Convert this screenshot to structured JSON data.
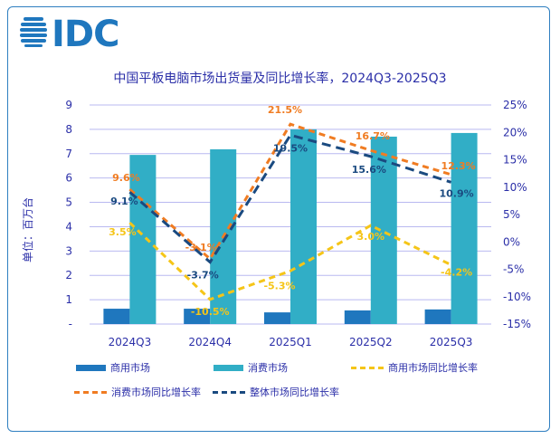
{
  "logo_text": "IDC",
  "title": "中国平板电脑市场出货量及同比增长率，2024Q3-2025Q3",
  "chart_data": {
    "type": "bar+line",
    "title": "中国平板电脑市场出货量及同比增长率，2024Q3-2025Q3",
    "ylabel": "单位：百万台",
    "categories": [
      "2024Q3",
      "2024Q4",
      "2025Q1",
      "2025Q2",
      "2025Q3"
    ],
    "ylim": [
      0,
      9
    ],
    "y_ticks": [
      "-",
      "1",
      "2",
      "3",
      "4",
      "5",
      "6",
      "7",
      "8",
      "9"
    ],
    "y2lim": [
      -15,
      25
    ],
    "y2_ticks": [
      "-15%",
      "-10%",
      "-5%",
      "0%",
      "5%",
      "10%",
      "15%",
      "20%",
      "25%"
    ],
    "grid": true,
    "legend_position": "bottom",
    "bar_series": [
      {
        "name": "商用市场",
        "color": "#1f77be",
        "values": [
          0.63,
          0.63,
          0.48,
          0.56,
          0.6
        ]
      },
      {
        "name": "消费市场",
        "color": "#31aec6",
        "values": [
          6.95,
          7.18,
          8.0,
          7.7,
          7.85
        ]
      }
    ],
    "line_series": [
      {
        "name": "商用市场同比增长率",
        "color": "#f5c518",
        "values": [
          3.5,
          -10.5,
          -5.3,
          3.0,
          -4.2
        ],
        "labels": [
          "3.5%",
          "-10.5%",
          "-5.3%",
          "3.0%",
          "-4.2%"
        ]
      },
      {
        "name": "消费市场同比增长率",
        "color": "#f07c22",
        "values": [
          9.6,
          -3.1,
          21.5,
          16.7,
          12.3
        ],
        "labels": [
          "9.6%",
          "-3.1%",
          "21.5%",
          "16.7%",
          "12.3%"
        ]
      },
      {
        "name": "整体市场同比增长率",
        "color": "#1a4a80",
        "values": [
          9.1,
          -3.7,
          19.5,
          15.6,
          10.9
        ],
        "labels": [
          "9.1%",
          "-3.7%",
          "19.5%",
          "15.6%",
          "10.9%"
        ]
      }
    ]
  }
}
